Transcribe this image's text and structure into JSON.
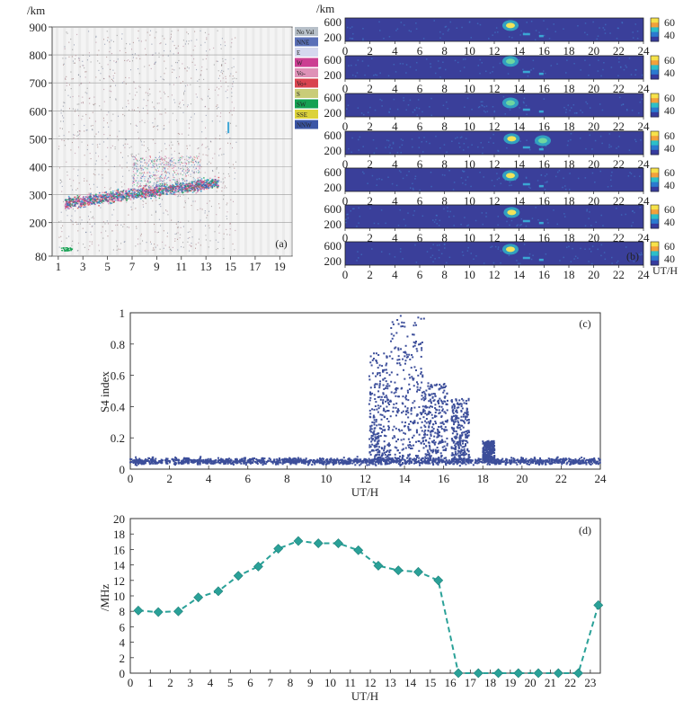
{
  "chart_data": [
    {
      "panel": "(a)",
      "type": "heatmap",
      "ylabel": "/km",
      "x_ticks": [
        "1",
        "3",
        "5",
        "7",
        "9",
        "11",
        "13",
        "15",
        "17",
        "19"
      ],
      "y_ticks": [
        "80",
        "200",
        "300",
        "400",
        "500",
        "600",
        "700",
        "800",
        "900"
      ],
      "ylim": [
        80,
        900
      ],
      "xlim": [
        0.5,
        20
      ],
      "legend": [
        "No Val",
        "NNE",
        "E",
        "W",
        "Vo-",
        "Vo+",
        "S",
        "SW",
        "SSE",
        "NNW"
      ],
      "legend_colors": [
        "#b7c0c9",
        "#5a70b8",
        "#d5d8ef",
        "#cc3f92",
        "#df91b7",
        "#d9444f",
        "#c9cc78",
        "#15a152",
        "#dcd23a",
        "#3b56a6"
      ],
      "legend_position": "right"
    },
    {
      "panel": "(b)",
      "type": "heatmap",
      "ylabel": "/km",
      "xlabel": "UT/H",
      "rows": 7,
      "y_ticks": [
        "600",
        "200"
      ],
      "x_ticks": [
        "0",
        "2",
        "4",
        "6",
        "8",
        "10",
        "12",
        "14",
        "16",
        "18",
        "20",
        "22",
        "24"
      ],
      "xlim": [
        0,
        24
      ],
      "ylim": [
        80,
        700
      ],
      "colorbar_ticks": [
        "60",
        "40"
      ],
      "bright_patches": [
        {
          "row": 0,
          "x": 13.3,
          "y": 500,
          "v": 65
        },
        {
          "row": 1,
          "x": 13.3,
          "y": 550,
          "v": 62
        },
        {
          "row": 2,
          "x": 13.3,
          "y": 450,
          "v": 60
        },
        {
          "row": 3,
          "x": 13.4,
          "y": 500,
          "v": 70
        },
        {
          "row": 3,
          "x": 15.9,
          "y": 450,
          "v": 55
        },
        {
          "row": 4,
          "x": 13.3,
          "y": 500,
          "v": 65
        },
        {
          "row": 5,
          "x": 13.4,
          "y": 500,
          "v": 68
        },
        {
          "row": 6,
          "x": 13.3,
          "y": 500,
          "v": 70
        }
      ]
    },
    {
      "panel": "(c)",
      "type": "scatter",
      "ylabel": "S4 index",
      "xlabel": "UT/H",
      "xlim": [
        0,
        24
      ],
      "ylim": [
        0,
        1
      ],
      "x_ticks": [
        "0",
        "2",
        "4",
        "6",
        "8",
        "10",
        "12",
        "14",
        "16",
        "18",
        "20",
        "22",
        "24"
      ],
      "y_ticks": [
        "0",
        "0.2",
        "0.4",
        "0.6",
        "0.8",
        "1"
      ],
      "series": [
        {
          "color": "#3c4e9a",
          "baseline": 0.05,
          "enhanced_windows": [
            {
              "from": 12.2,
              "to": 13.3,
              "max": 0.75
            },
            {
              "from": 13.3,
              "to": 15.0,
              "max": 0.98
            },
            {
              "from": 15.0,
              "to": 16.2,
              "max": 0.55
            },
            {
              "from": 16.4,
              "to": 17.3,
              "max": 0.45
            },
            {
              "from": 18.0,
              "to": 18.6,
              "max": 0.18
            }
          ]
        }
      ]
    },
    {
      "panel": "(d)",
      "type": "line",
      "ylabel": "/MHz",
      "xlabel": "UT/H",
      "xlim": [
        0,
        23.5
      ],
      "ylim": [
        0,
        20
      ],
      "x_ticks": [
        "0",
        "1",
        "2",
        "3",
        "4",
        "5",
        "6",
        "7",
        "8",
        "9",
        "10",
        "11",
        "12",
        "13",
        "14",
        "15",
        "16",
        "17",
        "18",
        "19",
        "20",
        "21",
        "22",
        "23"
      ],
      "y_ticks": [
        "0",
        "2",
        "4",
        "6",
        "8",
        "10",
        "12",
        "14",
        "16",
        "18",
        "20"
      ],
      "series": [
        {
          "color": "#2aa198",
          "style": "dashed",
          "marker": "diamond",
          "x": [
            0.4,
            1.4,
            2.4,
            3.4,
            4.4,
            5.4,
            6.4,
            7.4,
            8.4,
            9.4,
            10.4,
            11.4,
            12.4,
            13.4,
            14.4,
            15.4,
            16.4,
            17.4,
            18.4,
            19.4,
            20.4,
            21.4,
            22.4,
            23.4
          ],
          "values": [
            8.1,
            7.9,
            8.0,
            9.8,
            10.6,
            12.6,
            13.8,
            16.1,
            17.1,
            16.8,
            16.8,
            15.9,
            13.9,
            13.3,
            13.1,
            12.0,
            0,
            0,
            0,
            0,
            0,
            0,
            0,
            8.8
          ]
        }
      ]
    }
  ]
}
